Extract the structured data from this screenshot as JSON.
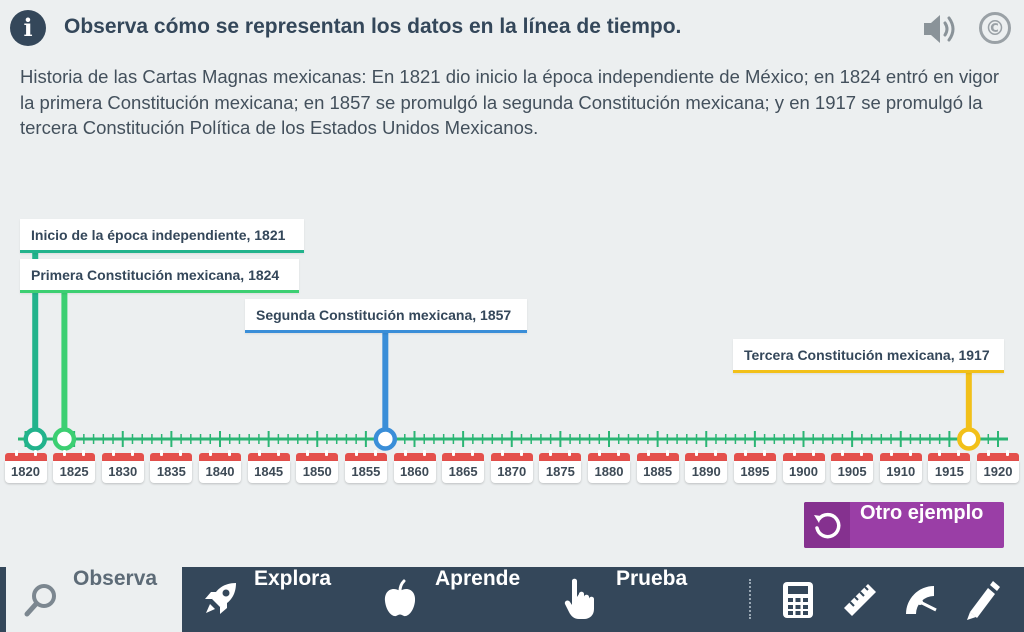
{
  "header": {
    "title": "Observa cómo se representan los datos en la línea de tiempo.",
    "info_icon": "i",
    "speaker_icon": "speaker-icon",
    "copyright_symbol": "©"
  },
  "description": "Historia de las Cartas Magnas mexicanas: En 1821 dio inicio la época independiente de México; en 1824 entró en vigor la primera Constitución mexicana; en 1857 se promulgó la segunda Constitución mexicana; y en 1917 se promulgó la tercera Constitución Política de los Estados Unidos Mexicanos.",
  "timeline": {
    "start_year": 1820,
    "end_year": 1920,
    "tick_step": 1,
    "year_labels": [
      "1820",
      "1825",
      "1830",
      "1835",
      "1840",
      "1845",
      "1850",
      "1855",
      "1860",
      "1865",
      "1870",
      "1875",
      "1880",
      "1885",
      "1890",
      "1895",
      "1900",
      "1905",
      "1910",
      "1915",
      "1920"
    ],
    "line_color": "#2bb574",
    "events": [
      {
        "year": 1821,
        "label": "Inicio de la época independiente, 1821",
        "color": "#22b38c"
      },
      {
        "year": 1824,
        "label": "Primera Constitución mexicana, 1824",
        "color": "#3ccf72"
      },
      {
        "year": 1857,
        "label": "Segunda Constitución mexicana, 1857",
        "color": "#3a8ed8"
      },
      {
        "year": 1917,
        "label": "Tercera Constitución mexicana, 1917",
        "color": "#f2c019"
      }
    ]
  },
  "action_button": {
    "label": "Otro ejemplo",
    "icon": "refresh-icon",
    "color": "#9a3ea6"
  },
  "nav": {
    "items": [
      {
        "label": "Observa",
        "icon": "magnifier-icon",
        "active": true
      },
      {
        "label": "Explora",
        "icon": "rocket-icon",
        "active": false
      },
      {
        "label": "Aprende",
        "icon": "apple-icon",
        "active": false
      },
      {
        "label": "Prueba",
        "icon": "pointer-hand-icon",
        "active": false
      }
    ],
    "tools": [
      "calculator-icon",
      "ruler-icon",
      "protractor-icon",
      "pencil-icon"
    ]
  }
}
